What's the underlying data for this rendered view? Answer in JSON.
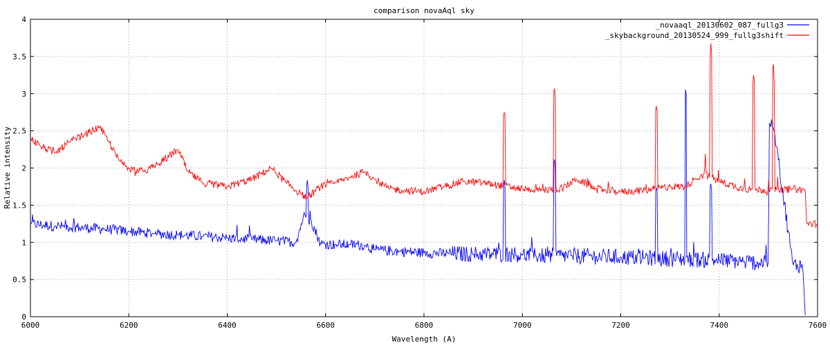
{
  "chart_data": {
    "type": "line",
    "title": "comparison novaAql sky",
    "xlabel": "Wavelength (A)",
    "ylabel": "Relative intensity",
    "xlim": [
      6000,
      7600
    ],
    "ylim": [
      0,
      4
    ],
    "grid": true,
    "legend_position": "top-right",
    "xticks": [
      6000,
      6200,
      6400,
      6600,
      6800,
      7000,
      7200,
      7400,
      7600
    ],
    "yticks": [
      0,
      0.5,
      1,
      1.5,
      2,
      2.5,
      3,
      3.5,
      4
    ],
    "series": [
      {
        "name": "_novaaql_20130602_087_fullg3",
        "color": "#0000ff",
        "x": [
          6000,
          6050,
          6100,
          6150,
          6200,
          6250,
          6300,
          6350,
          6400,
          6450,
          6500,
          6540,
          6555,
          6563,
          6570,
          6590,
          6620,
          6650,
          6680,
          6700,
          6750,
          6800,
          6850,
          6900,
          6950,
          6963,
          6980,
          7000,
          7050,
          7065,
          7080,
          7100,
          7150,
          7200,
          7250,
          7272,
          7300,
          7332,
          7350,
          7383,
          7400,
          7450,
          7500,
          7502,
          7512,
          7550,
          7570,
          7575
        ],
        "y": [
          1.25,
          1.22,
          1.2,
          1.18,
          1.15,
          1.12,
          1.1,
          1.08,
          1.06,
          1.04,
          1.02,
          1.0,
          1.35,
          1.85,
          1.3,
          0.98,
          0.97,
          0.97,
          0.96,
          0.9,
          0.88,
          0.86,
          0.85,
          0.84,
          0.84,
          1.85,
          0.84,
          0.83,
          0.82,
          2.15,
          0.82,
          0.82,
          0.81,
          0.8,
          0.79,
          1.75,
          0.78,
          3.1,
          0.77,
          1.8,
          0.76,
          0.74,
          0.72,
          2.6,
          2.5,
          0.7,
          0.69,
          0.02
        ]
      },
      {
        "name": "_skybackground_20130524_999_fullg3shift",
        "color": "#ff0000",
        "x": [
          6000,
          6020,
          6050,
          6080,
          6110,
          6140,
          6160,
          6180,
          6200,
          6230,
          6260,
          6300,
          6320,
          6350,
          6400,
          6450,
          6490,
          6520,
          6550,
          6563,
          6590,
          6620,
          6650,
          6680,
          6700,
          6730,
          6760,
          6800,
          6840,
          6880,
          6920,
          6963,
          7000,
          7040,
          7065,
          7080,
          7110,
          7150,
          7200,
          7250,
          7272,
          7300,
          7332,
          7350,
          7370,
          7383,
          7400,
          7450,
          7470,
          7500,
          7510,
          7520,
          7550,
          7575,
          7578,
          7600
        ],
        "y": [
          2.4,
          2.3,
          2.2,
          2.35,
          2.45,
          2.55,
          2.35,
          2.1,
          2.0,
          1.95,
          2.05,
          2.25,
          1.95,
          1.8,
          1.75,
          1.85,
          2.0,
          1.8,
          1.65,
          1.6,
          1.75,
          1.8,
          1.88,
          1.95,
          1.85,
          1.72,
          1.7,
          1.68,
          1.75,
          1.82,
          1.8,
          2.75,
          1.72,
          1.7,
          3.1,
          1.72,
          1.85,
          1.72,
          1.68,
          1.7,
          2.85,
          1.75,
          1.75,
          1.85,
          1.92,
          3.7,
          1.82,
          1.72,
          3.25,
          1.7,
          3.5,
          1.7,
          1.72,
          1.7,
          1.25,
          1.25
        ]
      }
    ]
  }
}
